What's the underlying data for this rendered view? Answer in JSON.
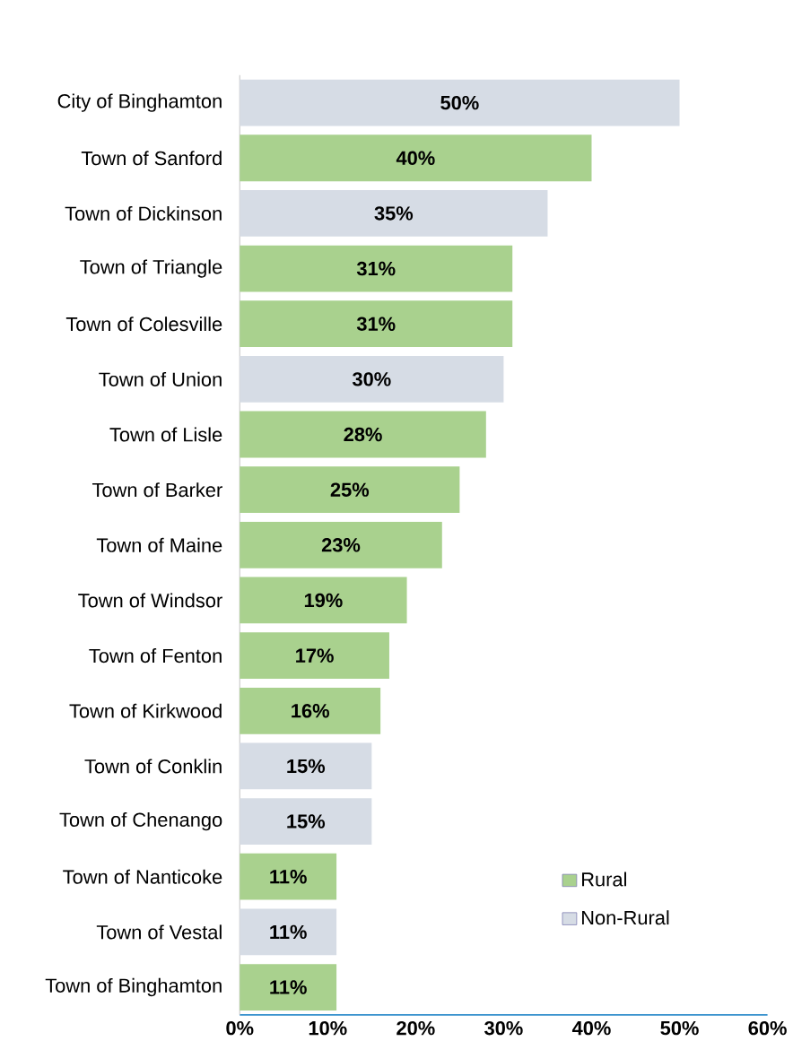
{
  "chart_data": {
    "type": "bar",
    "orientation": "horizontal",
    "categories": [
      "City of Binghamton",
      "Town of Sanford",
      "Town of Dickinson",
      "Town of Triangle",
      "Town of Colesville",
      "Town of Union",
      "Town of Lisle",
      "Town of Barker",
      "Town of Maine",
      "Town of Windsor",
      "Town of Fenton",
      "Town of Kirkwood",
      "Town of Conklin",
      "Town of Chenango",
      "Town of Nanticoke",
      "Town of Vestal",
      "Town of Binghamton"
    ],
    "series": [
      {
        "name": "Rural",
        "color": "#a9d18e",
        "values": [
          null,
          40,
          null,
          31,
          31,
          null,
          28,
          25,
          23,
          19,
          17,
          16,
          null,
          null,
          11,
          null,
          11
        ],
        "value_labels": [
          null,
          "40%",
          null,
          "31%",
          "31%",
          null,
          "28%",
          "25%",
          "23%",
          "19%",
          "17%",
          "16%",
          null,
          null,
          "11%",
          null,
          "11%"
        ]
      },
      {
        "name": "Non-Rural",
        "color": "#d6dce5",
        "values": [
          50,
          null,
          35,
          null,
          null,
          30,
          null,
          null,
          null,
          null,
          null,
          null,
          15,
          15,
          null,
          11,
          null
        ],
        "value_labels": [
          "50%",
          null,
          "35%",
          null,
          null,
          "30%",
          null,
          null,
          null,
          null,
          null,
          null,
          "15%",
          "15%",
          null,
          "11%",
          null
        ]
      }
    ],
    "xlim": [
      0,
      60
    ],
    "xticks": [
      {
        "value": 0,
        "label": "0%"
      },
      {
        "value": 10,
        "label": "10%"
      },
      {
        "value": 20,
        "label": "20%"
      },
      {
        "value": 30,
        "label": "30%"
      },
      {
        "value": 40,
        "label": "40%"
      },
      {
        "value": 50,
        "label": "50%"
      },
      {
        "value": 60,
        "label": "60%"
      }
    ],
    "grid": false,
    "legend": "bottom right"
  }
}
